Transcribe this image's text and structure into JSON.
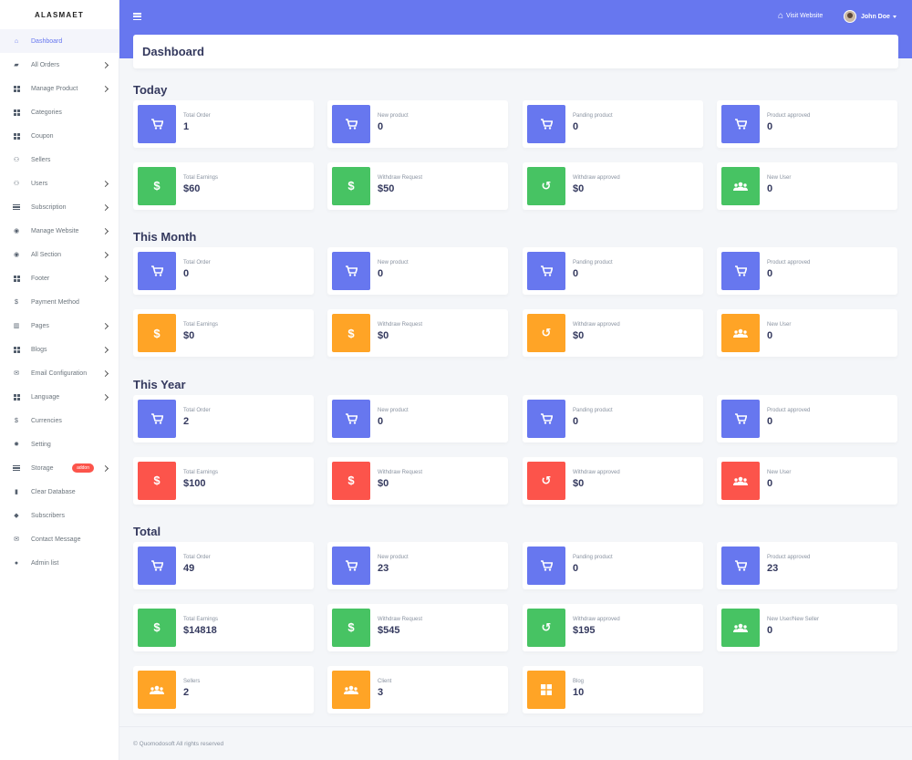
{
  "brand": "ALASMAET",
  "colors": {
    "blue": "#6777ef",
    "green": "#47c363",
    "orange": "#ffa426",
    "red": "#fc544b"
  },
  "sidebar": {
    "items": [
      {
        "label": "Dashboard",
        "icon": "home-icon",
        "chevron": false,
        "active": true
      },
      {
        "label": "All Orders",
        "icon": "cart-icon",
        "chevron": true
      },
      {
        "label": "Manage Product",
        "icon": "grid-icon",
        "chevron": true
      },
      {
        "label": "Categories",
        "icon": "grid-icon",
        "chevron": false
      },
      {
        "label": "Coupon",
        "icon": "grid-icon",
        "chevron": false
      },
      {
        "label": "Sellers",
        "icon": "users-icon",
        "chevron": false
      },
      {
        "label": "Users",
        "icon": "users-icon",
        "chevron": true
      },
      {
        "label": "Subscription",
        "icon": "list-icon",
        "chevron": true
      },
      {
        "label": "Manage Website",
        "icon": "globe-icon",
        "chevron": true
      },
      {
        "label": "All Section",
        "icon": "globe-icon",
        "chevron": true
      },
      {
        "label": "Footer",
        "icon": "grid-icon",
        "chevron": true
      },
      {
        "label": "Payment Method",
        "icon": "dollar-icon",
        "chevron": false
      },
      {
        "label": "Pages",
        "icon": "columns-icon",
        "chevron": true
      },
      {
        "label": "Blogs",
        "icon": "grid-icon",
        "chevron": true
      },
      {
        "label": "Email Configuration",
        "icon": "envelope-icon",
        "chevron": true
      },
      {
        "label": "Language",
        "icon": "grid-icon",
        "chevron": true
      },
      {
        "label": "Currencies",
        "icon": "dollar-icon",
        "chevron": false
      },
      {
        "label": "Setting",
        "icon": "gear-icon",
        "chevron": false
      },
      {
        "label": "Storage",
        "icon": "list-icon",
        "chevron": true,
        "badge": "addon"
      },
      {
        "label": "Clear Database",
        "icon": "trash-icon",
        "chevron": false
      },
      {
        "label": "Subscribers",
        "icon": "fire-icon",
        "chevron": false
      },
      {
        "label": "Contact Message",
        "icon": "envelope-icon",
        "chevron": false
      },
      {
        "label": "Admin list",
        "icon": "user-icon",
        "chevron": false
      }
    ]
  },
  "header": {
    "visit_label": "Visit Website",
    "user_name": "John Doe"
  },
  "page_title": "Dashboard",
  "groups": [
    {
      "title": "Today",
      "rows": [
        [
          {
            "label": "Total Order",
            "value": "1",
            "icon": "cart-icon",
            "color": "blue"
          },
          {
            "label": "New product",
            "value": "0",
            "icon": "cart-icon",
            "color": "blue"
          },
          {
            "label": "Panding product",
            "value": "0",
            "icon": "cart-icon",
            "color": "blue"
          },
          {
            "label": "Product approved",
            "value": "0",
            "icon": "cart-icon",
            "color": "blue"
          }
        ],
        [
          {
            "label": "Total Earnings",
            "value": "$60",
            "icon": "dollar-icon",
            "color": "green"
          },
          {
            "label": "Withdraw Request",
            "value": "$50",
            "icon": "dollar-icon",
            "color": "green"
          },
          {
            "label": "Withdraw approved",
            "value": "$0",
            "icon": "undo-icon",
            "color": "green"
          },
          {
            "label": "New User",
            "value": "0",
            "icon": "users-icon",
            "color": "green"
          }
        ]
      ]
    },
    {
      "title": "This Month",
      "rows": [
        [
          {
            "label": "Total Order",
            "value": "0",
            "icon": "cart-icon",
            "color": "blue"
          },
          {
            "label": "New product",
            "value": "0",
            "icon": "cart-icon",
            "color": "blue"
          },
          {
            "label": "Panding product",
            "value": "0",
            "icon": "cart-icon",
            "color": "blue"
          },
          {
            "label": "Product approved",
            "value": "0",
            "icon": "cart-icon",
            "color": "blue"
          }
        ],
        [
          {
            "label": "Total Earnings",
            "value": "$0",
            "icon": "dollar-icon",
            "color": "orange"
          },
          {
            "label": "Withdraw Request",
            "value": "$0",
            "icon": "dollar-icon",
            "color": "orange"
          },
          {
            "label": "Withdraw approved",
            "value": "$0",
            "icon": "undo-icon",
            "color": "orange"
          },
          {
            "label": "New User",
            "value": "0",
            "icon": "users-icon",
            "color": "orange"
          }
        ]
      ]
    },
    {
      "title": "This Year",
      "rows": [
        [
          {
            "label": "Total Order",
            "value": "2",
            "icon": "cart-icon",
            "color": "blue"
          },
          {
            "label": "New product",
            "value": "0",
            "icon": "cart-icon",
            "color": "blue"
          },
          {
            "label": "Panding product",
            "value": "0",
            "icon": "cart-icon",
            "color": "blue"
          },
          {
            "label": "Product approved",
            "value": "0",
            "icon": "cart-icon",
            "color": "blue"
          }
        ],
        [
          {
            "label": "Total Earnings",
            "value": "$100",
            "icon": "dollar-icon",
            "color": "red"
          },
          {
            "label": "Withdraw Request",
            "value": "$0",
            "icon": "dollar-icon",
            "color": "red"
          },
          {
            "label": "Withdraw approved",
            "value": "$0",
            "icon": "undo-icon",
            "color": "red"
          },
          {
            "label": "New User",
            "value": "0",
            "icon": "users-icon",
            "color": "red"
          }
        ]
      ]
    },
    {
      "title": "Total",
      "rows": [
        [
          {
            "label": "Total Order",
            "value": "49",
            "icon": "cart-icon",
            "color": "blue"
          },
          {
            "label": "New product",
            "value": "23",
            "icon": "cart-icon",
            "color": "blue"
          },
          {
            "label": "Panding product",
            "value": "0",
            "icon": "cart-icon",
            "color": "blue"
          },
          {
            "label": "Product approved",
            "value": "23",
            "icon": "cart-icon",
            "color": "blue"
          }
        ],
        [
          {
            "label": "Total Earnings",
            "value": "$14818",
            "icon": "dollar-icon",
            "color": "green"
          },
          {
            "label": "Withdraw Request",
            "value": "$545",
            "icon": "dollar-icon",
            "color": "green"
          },
          {
            "label": "Withdraw approved",
            "value": "$195",
            "icon": "undo-icon",
            "color": "green"
          },
          {
            "label": "New User/New Seller",
            "value": "0",
            "icon": "users-icon",
            "color": "green"
          }
        ],
        [
          {
            "label": "Sellers",
            "value": "2",
            "icon": "users-icon",
            "color": "orange"
          },
          {
            "label": "Client",
            "value": "3",
            "icon": "users-icon",
            "color": "orange"
          },
          {
            "label": "Blog",
            "value": "10",
            "icon": "grid-icon",
            "color": "orange"
          }
        ]
      ]
    }
  ],
  "footer": "© Quomodosoft All rights reserved"
}
